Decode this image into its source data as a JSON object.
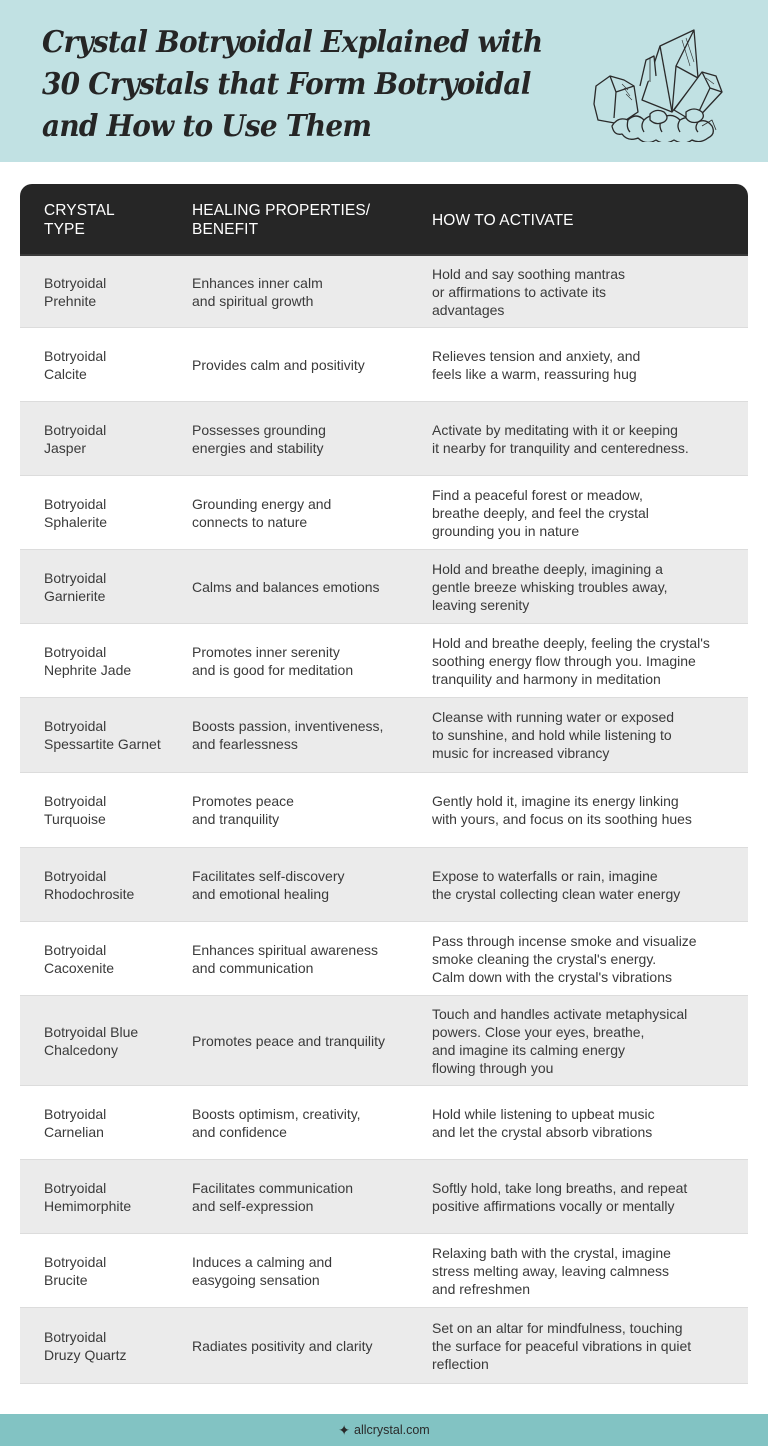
{
  "header": {
    "title_lines": [
      "Crystal Botryoidal Explained with",
      "30 Crystals that Form Botryoidal",
      "and How to Use Them"
    ],
    "illustration": "crystal-cluster-icon",
    "background_color": "#c1e1e3"
  },
  "table": {
    "header_color": "#262626",
    "columns": [
      {
        "lines": [
          "CRYSTAL",
          "TYPE"
        ]
      },
      {
        "lines": [
          "HEALING PROPERTIES/",
          "BENEFIT"
        ]
      },
      {
        "lines": [
          "HOW TO ACTIVATE"
        ]
      }
    ],
    "rows": [
      {
        "crystal": [
          "Botryoidal",
          "Prehnite"
        ],
        "benefit": [
          "Enhances inner calm",
          "and spiritual growth"
        ],
        "activate": [
          "Hold and say soothing mantras",
          "or affirmations to activate its",
          "advantages"
        ]
      },
      {
        "crystal": [
          "Botryoidal",
          "Calcite"
        ],
        "benefit": [
          "Provides calm and positivity"
        ],
        "activate": [
          "Relieves tension and anxiety, and",
          "feels like a warm, reassuring hug"
        ]
      },
      {
        "crystal": [
          "Botryoidal",
          "Jasper"
        ],
        "benefit": [
          "Possesses grounding",
          "energies and stability"
        ],
        "activate": [
          "Activate by meditating with it or keeping",
          "it nearby for tranquility and centeredness."
        ]
      },
      {
        "crystal": [
          "Botryoidal",
          "Sphalerite"
        ],
        "benefit": [
          "Grounding energy and",
          "connects to nature"
        ],
        "activate": [
          "Find a peaceful forest or meadow,",
          "breathe deeply, and feel the crystal",
          "grounding you in nature"
        ]
      },
      {
        "crystal": [
          "Botryoidal",
          "Garnierite"
        ],
        "benefit": [
          "Calms and balances emotions"
        ],
        "activate": [
          "Hold and breathe deeply, imagining a",
          "gentle breeze whisking troubles away,",
          "leaving serenity"
        ]
      },
      {
        "crystal": [
          "Botryoidal",
          "Nephrite Jade"
        ],
        "benefit": [
          "Promotes inner serenity",
          "and is good for meditation"
        ],
        "activate": [
          "Hold and breathe deeply, feeling the crystal's",
          "soothing energy flow through you. Imagine",
          "tranquility and harmony in meditation"
        ]
      },
      {
        "crystal": [
          "Botryoidal",
          "Spessartite Garnet"
        ],
        "benefit": [
          "Boosts passion, inventiveness,",
          "and fearlessness"
        ],
        "activate": [
          "Cleanse with running water or exposed",
          "to sunshine, and hold while listening to",
          "music for increased vibrancy"
        ]
      },
      {
        "crystal": [
          "Botryoidal",
          "Turquoise"
        ],
        "benefit": [
          "Promotes peace",
          "and tranquility"
        ],
        "activate": [
          "Gently hold it, imagine its energy linking",
          "with yours, and focus on its soothing hues"
        ]
      },
      {
        "crystal": [
          "Botryoidal",
          "Rhodochrosite"
        ],
        "benefit": [
          "Facilitates self-discovery",
          "and emotional healing"
        ],
        "activate": [
          "Expose to waterfalls or rain, imagine",
          "the crystal collecting clean water energy"
        ]
      },
      {
        "crystal": [
          "Botryoidal",
          "Cacoxenite"
        ],
        "benefit": [
          "Enhances spiritual awareness",
          "and communication"
        ],
        "activate": [
          "Pass through incense smoke and visualize",
          "smoke cleaning the crystal's energy.",
          "Calm down with the crystal's vibrations"
        ]
      },
      {
        "crystal": [
          "Botryoidal Blue",
          "Chalcedony"
        ],
        "benefit": [
          "Promotes peace and tranquility"
        ],
        "activate": [
          "Touch and handles activate metaphysical",
          "powers. Close your eyes, breathe,",
          "and imagine its calming energy",
          "flowing through you"
        ]
      },
      {
        "crystal": [
          "Botryoidal",
          "Carnelian"
        ],
        "benefit": [
          "Boosts optimism, creativity,",
          "and confidence"
        ],
        "activate": [
          "Hold while listening to upbeat music",
          "and let the crystal absorb vibrations"
        ]
      },
      {
        "crystal": [
          "Botryoidal",
          "Hemimorphite"
        ],
        "benefit": [
          "Facilitates communication",
          "and self-expression"
        ],
        "activate": [
          "Softly hold, take long breaths, and repeat",
          "positive affirmations vocally or mentally"
        ]
      },
      {
        "crystal": [
          "Botryoidal",
          "Brucite"
        ],
        "benefit": [
          "Induces a calming and",
          "easygoing sensation"
        ],
        "activate": [
          "Relaxing bath with the crystal, imagine",
          "stress melting away, leaving calmness",
          "and refreshmen"
        ]
      },
      {
        "crystal": [
          "Botryoidal",
          "Druzy Quartz"
        ],
        "benefit": [
          "Radiates positivity and clarity"
        ],
        "activate": [
          "Set on an altar for mindfulness, touching",
          "the surface for peaceful vibrations in quiet",
          "reflection"
        ]
      }
    ]
  },
  "footer": {
    "icon": "sparkle-star-icon",
    "glyph": "✦",
    "site": "allcrystal.com",
    "background_color": "#82c3c3"
  }
}
